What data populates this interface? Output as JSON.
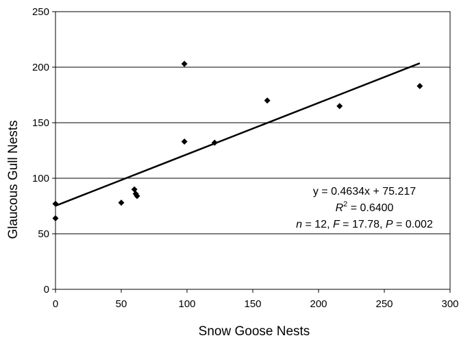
{
  "chart_data": {
    "type": "scatter",
    "title": "",
    "xlabel": "Snow Goose Nests",
    "ylabel": "Glaucous Gull Nests",
    "xlim": [
      0,
      300
    ],
    "ylim": [
      0,
      250
    ],
    "x_ticks": [
      "0",
      "50",
      "100",
      "150",
      "200",
      "250",
      "300"
    ],
    "y_ticks": [
      "0",
      "50",
      "100",
      "150",
      "200",
      "250"
    ],
    "grid": "horizontal",
    "legend": "none",
    "points": [
      {
        "x": 0,
        "y": 77
      },
      {
        "x": 0,
        "y": 64
      },
      {
        "x": 50,
        "y": 78
      },
      {
        "x": 60,
        "y": 90
      },
      {
        "x": 61,
        "y": 86
      },
      {
        "x": 62,
        "y": 84
      },
      {
        "x": 98,
        "y": 203
      },
      {
        "x": 98,
        "y": 133
      },
      {
        "x": 121,
        "y": 132
      },
      {
        "x": 161,
        "y": 170
      },
      {
        "x": 216,
        "y": 165
      },
      {
        "x": 277,
        "y": 183
      }
    ],
    "trendline": {
      "slope": 0.4634,
      "intercept": 75.217,
      "x_range": [
        0,
        277
      ]
    },
    "annotations": {
      "equation": "y = 0.4634x + 75.217",
      "r2_prefix": "R",
      "r2_sup": "2",
      "r2_value": " = 0.6400",
      "stats": [
        {
          "text": "n",
          "italic": true
        },
        {
          "text": " = 12, ",
          "italic": false
        },
        {
          "text": "F",
          "italic": true
        },
        {
          "text": " = 17.78, ",
          "italic": false
        },
        {
          "text": "P",
          "italic": true
        },
        {
          "text": " = 0.002",
          "italic": false
        }
      ]
    },
    "colors": {
      "marker": "#000000",
      "line": "#000000",
      "grid": "#000000"
    }
  }
}
